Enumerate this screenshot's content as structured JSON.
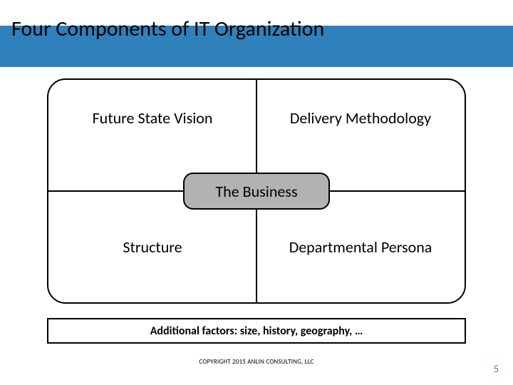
{
  "slide": {
    "title": "Four Components of IT Organization",
    "title_color": "#000000",
    "title_fontsize": 30,
    "blue_bar_color": "#2f81bc",
    "background_color": "#ffffff"
  },
  "matrix": {
    "border_color": "#000000",
    "border_width": 2,
    "border_radius": 26,
    "quadrants": {
      "top_left": {
        "label": "Future State Vision"
      },
      "top_right": {
        "label": "Delivery Methodology"
      },
      "bottom_left": {
        "label": "Structure"
      },
      "bottom_right": {
        "label": "Departmental Persona"
      }
    },
    "center": {
      "label": "The Business",
      "fill_color": "#b2b2b2",
      "border_color": "#000000",
      "border_radius": 14
    },
    "quad_fontsize": 22
  },
  "factors": {
    "text": "Additional factors:  size, history, geography, …",
    "fontsize": 16,
    "border_color": "#000000"
  },
  "footer": {
    "copyright": "COPYRIGHT 2015 ANLIN CONSULTING, LLC",
    "page_number": "5",
    "page_number_color": "#2f81bc"
  }
}
